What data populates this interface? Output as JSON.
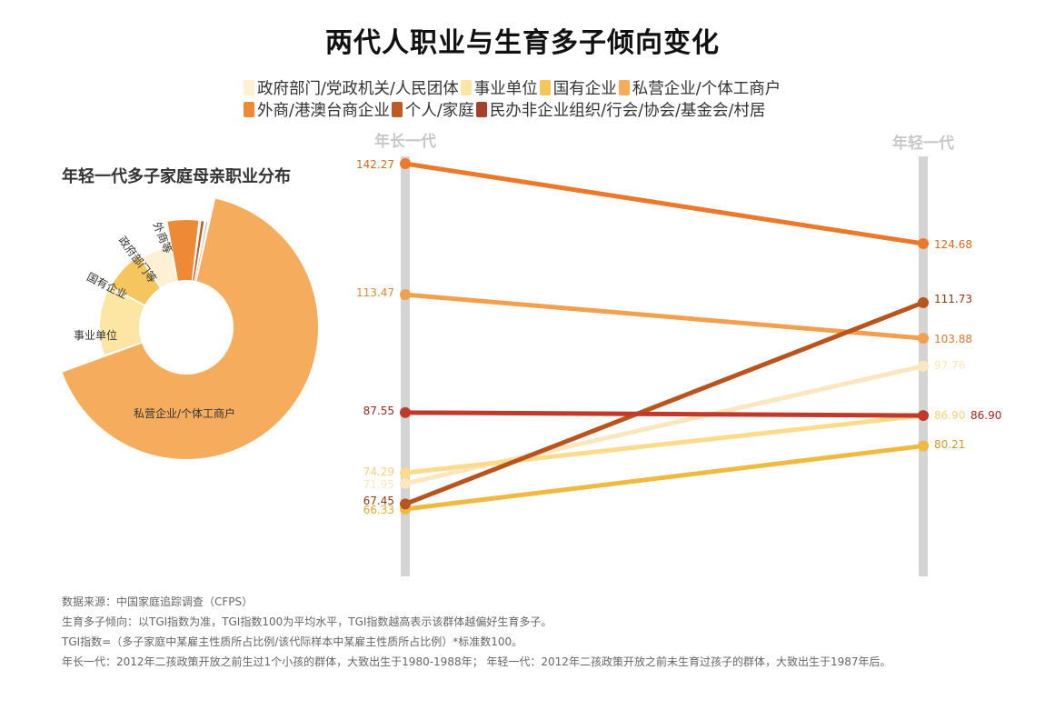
{
  "title": "两代人职业与生育多子倾向变化",
  "legend": [
    {
      "label": "政府部门/党政机关/人民团体",
      "color": "#fdf0d5"
    },
    {
      "label": "事业单位",
      "color": "#fde5a3"
    },
    {
      "label": "国有企业",
      "color": "#f5c55e"
    },
    {
      "label": "私营企业/个体工商户",
      "color": "#f5ad5d"
    },
    {
      "label": "外商/港澳台商企业",
      "color": "#ee8a36"
    },
    {
      "label": "个人/家庭",
      "color": "#bf5a25"
    },
    {
      "label": "民办非企业组织/行会/协会/基金会/村居",
      "color": "#a5402c"
    }
  ],
  "donut": {
    "title": "年轻一代多子家庭母亲职业分布"
  },
  "chart_data": [
    {
      "type": "slope",
      "axes": [
        "年长一代",
        "年轻一代"
      ],
      "series": [
        {
          "name": "政府部门/党政机关/人民团体",
          "values": [
            71.95,
            97.76
          ],
          "color": "#fbe6c0",
          "label_colors": [
            "#fbe6c0",
            "#fbe6c0"
          ]
        },
        {
          "name": "事业单位",
          "values": [
            74.29,
            86.9
          ],
          "color": "#fcdc8c",
          "label_colors": [
            "#f6d27a",
            "#f6d27a"
          ]
        },
        {
          "name": "国有企业",
          "values": [
            66.33,
            80.21
          ],
          "color": "#f0b940",
          "label_colors": [
            "#e2a92e",
            "#d49a2a"
          ]
        },
        {
          "name": "私营企业/个体工商户",
          "values": [
            113.47,
            103.88
          ],
          "color": "#f1a050",
          "label_colors": [
            "#e08a3a",
            "#d9782a"
          ]
        },
        {
          "name": "外商/港澳台商企业",
          "values": [
            142.27,
            124.68
          ],
          "color": "#ea7a2a",
          "label_colors": [
            "#d66a1e",
            "#d66a1e"
          ]
        },
        {
          "name": "个人/家庭",
          "values": [
            67.45,
            111.73
          ],
          "color": "#b8541e",
          "label_colors": [
            "#8a3a14",
            "#8a3a14"
          ]
        },
        {
          "name": "民办非企业组织/行会/协会/基金会/村居",
          "values": [
            87.55,
            86.9
          ],
          "color": "#c0392b",
          "label_colors": [
            "#a0281e",
            "#a0281e"
          ]
        }
      ]
    },
    {
      "type": "pie",
      "title": "年轻一代多子家庭母亲职业分布",
      "slices": [
        {
          "label": "私营企业/个体工商户",
          "value": 66.0,
          "color": "#f5ad5d"
        },
        {
          "label": "事业单位",
          "value": 13.0,
          "color": "#fde5a3"
        },
        {
          "label": "国有企业",
          "value": 8.0,
          "color": "#f5c55e"
        },
        {
          "label": "政府部门等",
          "value": 6.2,
          "color": "#fdf0d5"
        },
        {
          "label": "外商等",
          "value": 5.0,
          "color": "#ee8a36"
        },
        {
          "label": "",
          "value": 0.8,
          "color": "#bf5a25"
        },
        {
          "label": "",
          "value": 0.5,
          "color": "#a5402c"
        }
      ]
    }
  ],
  "notes": [
    "数据来源：中国家庭追踪调查（CFPS）",
    "生育多子倾向：以TGI指数为准，TGI指数100为平均水平，TGI指数越高表示该群体越偏好生育多子。",
    "TGI指数=（多子家庭中某雇主性质所占比例/该代际样本中某雇主性质所占比例）*标准数100。",
    "年长一代：2012年二孩政策开放之前生过1个小孩的群体，大致出生于1980-1988年；  年轻一代：2012年二孩政策开放之前未生育过孩子的群体，大致出生于1987年后。"
  ]
}
